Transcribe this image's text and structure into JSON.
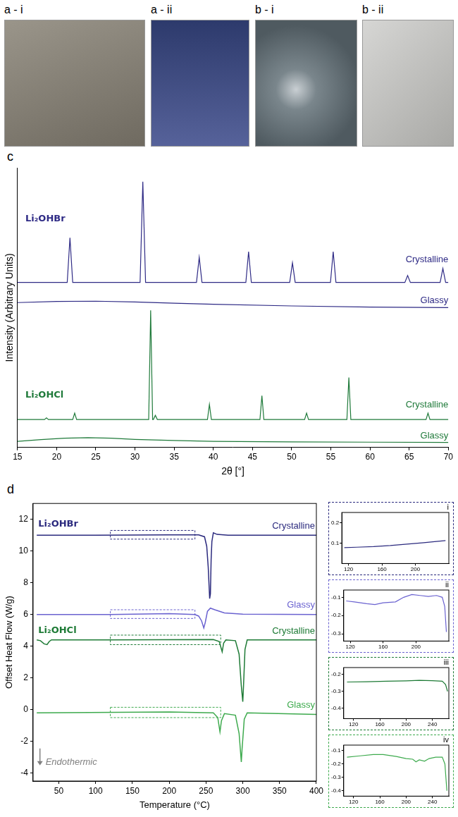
{
  "photos": [
    {
      "label": "a - i"
    },
    {
      "label": "a - ii"
    },
    {
      "label": "b - i"
    },
    {
      "label": "b - ii"
    }
  ],
  "chart_data": [
    {
      "panel": "c",
      "type": "line",
      "x_label": "2θ [°]",
      "y_label": "Intensity (Arbitrary Units)",
      "xlim": [
        15,
        70
      ],
      "xticks": [
        15,
        20,
        25,
        30,
        35,
        40,
        45,
        50,
        55,
        60,
        65,
        70
      ],
      "ylim": [
        0,
        100
      ],
      "tick_labels": "x",
      "grid": false,
      "series": [
        {
          "color": "#2e2a85",
          "x": [
            15,
            21.35,
            21.7,
            22.05,
            30.65,
            31.0,
            31.35,
            37.85,
            38.2,
            38.55,
            44.15,
            44.5,
            44.85,
            49.75,
            50.1,
            50.45,
            54.95,
            55.3,
            55.65,
            64.45,
            64.8,
            65.15,
            68.95,
            69.3,
            69.65,
            70
          ],
          "values": [
            59,
            59,
            75,
            59,
            59,
            95,
            59,
            59,
            68,
            59,
            59,
            70,
            59,
            59,
            66,
            59,
            59,
            70,
            59,
            59,
            61.5,
            59,
            59,
            64,
            59,
            59
          ]
        },
        {
          "color": "#2e2a85",
          "x": [
            15,
            20,
            25,
            30,
            35,
            40,
            50,
            60,
            70
          ],
          "values": [
            51.8,
            52.2,
            52.3,
            52.0,
            51.6,
            51.2,
            50.6,
            50.2,
            50.0
          ]
        },
        {
          "color": "#1f7a3a",
          "x": [
            15,
            18.45,
            18.7,
            18.95,
            22.05,
            22.3,
            22.55,
            31.75,
            32.0,
            32.25,
            32.35,
            32.6,
            32.85,
            39.25,
            39.5,
            39.75,
            45.95,
            46.2,
            46.45,
            51.65,
            51.9,
            52.15,
            57.05,
            57.3,
            57.55,
            67.15,
            67.4,
            67.65,
            70
          ],
          "values": [
            10,
            10,
            10.6,
            10,
            10,
            12.3,
            10,
            10,
            49,
            10,
            10,
            11.5,
            10,
            10,
            15.4,
            10,
            10,
            18.5,
            10,
            10,
            12.3,
            10,
            10,
            25,
            10,
            10,
            12.3,
            10,
            10
          ]
        },
        {
          "color": "#1f7a3a",
          "x": [
            15,
            18,
            21,
            24,
            27,
            30,
            35,
            40,
            50,
            60,
            70
          ],
          "values": [
            2.2,
            2.8,
            3.3,
            3.5,
            3.3,
            2.9,
            2.5,
            2.2,
            2.0,
            1.9,
            1.8
          ]
        }
      ],
      "annotations": [
        {
          "text": "Li₂OHBr",
          "x": 16,
          "y": 80,
          "color": "#2e2a85",
          "weight": "bold",
          "align": "left"
        },
        {
          "text": "Crystalline",
          "x": 70,
          "y": 65.5,
          "color": "#2e2a85",
          "align": "right"
        },
        {
          "text": "Glassy",
          "x": 70,
          "y": 51,
          "color": "#2e2a85",
          "align": "right"
        },
        {
          "text": "Li₂OHCl",
          "x": 16,
          "y": 17,
          "color": "#1f7a3a",
          "weight": "bold",
          "align": "left"
        },
        {
          "text": "Crystalline",
          "x": 70,
          "y": 13.5,
          "color": "#1f7a3a",
          "align": "right"
        },
        {
          "text": "Glassy",
          "x": 70,
          "y": 2.6,
          "color": "#1f7a3a",
          "align": "right"
        }
      ]
    },
    {
      "panel": "d",
      "type": "line",
      "x_label": "Temperature (°C)",
      "y_label": "Offset Heat Flow (W/g)",
      "xlim": [
        15,
        400
      ],
      "xticks": [
        50,
        100,
        150,
        200,
        250,
        300,
        350,
        400
      ],
      "ylim": [
        -4.5,
        13
      ],
      "yticks": [
        -4,
        -2,
        0,
        2,
        4,
        6,
        8,
        10,
        12
      ],
      "grid": false,
      "series": [
        {
          "color": "#2b2a7e",
          "x": [
            20,
            100,
            200,
            240,
            248,
            251,
            253,
            255,
            256,
            257,
            258,
            260,
            265,
            280,
            400
          ],
          "values": [
            11.0,
            11.0,
            11.02,
            11.02,
            10.9,
            10.3,
            9.0,
            7.0,
            7.3,
            9.5,
            10.6,
            11.15,
            11.05,
            11.0,
            11.0
          ]
        },
        {
          "color": "#6a62d0",
          "x": [
            20,
            120,
            200,
            235,
            240,
            244,
            247,
            249,
            252,
            256,
            262,
            275,
            300,
            400
          ],
          "values": [
            6.0,
            6.0,
            6.05,
            6.0,
            5.9,
            5.6,
            5.15,
            5.5,
            6.2,
            6.4,
            6.3,
            6.1,
            6.02,
            6.0
          ]
        },
        {
          "color": "#1d7a35",
          "x": [
            20,
            25,
            30,
            34,
            37,
            40,
            120,
            260,
            268,
            272,
            274,
            277,
            290,
            295,
            298,
            300,
            301,
            303,
            306,
            400
          ],
          "values": [
            4.4,
            4.35,
            4.15,
            4.1,
            4.3,
            4.4,
            4.4,
            4.42,
            4.3,
            3.65,
            4.2,
            4.4,
            4.35,
            3.5,
            1.5,
            0.5,
            1.5,
            3.8,
            4.4,
            4.4
          ]
        },
        {
          "color": "#3daa4d",
          "x": [
            20,
            200,
            260,
            266,
            269,
            271,
            275,
            290,
            295,
            298,
            299,
            302,
            306,
            400
          ],
          "values": [
            -0.2,
            -0.15,
            -0.2,
            -0.5,
            -1.4,
            -0.7,
            -0.25,
            -0.35,
            -1.5,
            -3.3,
            -2.5,
            -0.6,
            -0.2,
            -0.3
          ]
        }
      ],
      "zoom_boxes": [
        {
          "x": [
            120,
            235
          ],
          "y": [
            10.75,
            11.3
          ],
          "color": "#2b2a7e"
        },
        {
          "x": [
            120,
            235
          ],
          "y": [
            5.75,
            6.3
          ],
          "color": "#6a62d0"
        },
        {
          "x": [
            120,
            270
          ],
          "y": [
            4.1,
            4.7
          ],
          "color": "#1d7a35"
        },
        {
          "x": [
            120,
            270
          ],
          "y": [
            -0.5,
            0.15
          ],
          "color": "#3daa4d"
        }
      ],
      "annotations": [
        {
          "text": "Li₂OHBr",
          "x": 22,
          "y": 11.4,
          "color": "#2b2a7e",
          "weight": "bold",
          "align": "left"
        },
        {
          "text": "Crystalline",
          "x": 398,
          "y": 11.3,
          "color": "#2b2a7e",
          "align": "right"
        },
        {
          "text": "Glassy",
          "x": 398,
          "y": 6.3,
          "color": "#6a62d0",
          "align": "right"
        },
        {
          "text": "Li₂OHCl",
          "x": 22,
          "y": 4.7,
          "color": "#1d7a35",
          "weight": "bold",
          "align": "left"
        },
        {
          "text": "Crystalline",
          "x": 398,
          "y": 4.65,
          "color": "#1d7a35",
          "align": "right"
        },
        {
          "text": "Glassy",
          "x": 398,
          "y": 0.0,
          "color": "#3daa4d",
          "align": "right"
        },
        {
          "text": "Endothermic",
          "x": 32,
          "y": -3.6,
          "color": "#808080",
          "style": "italic",
          "align": "left",
          "arrow": "down"
        }
      ]
    },
    {
      "panel": "i",
      "type": "line",
      "xlim": [
        112,
        240
      ],
      "xticks": [
        120,
        160,
        200
      ],
      "ylim": [
        0,
        0.25
      ],
      "yticks": [
        0.1,
        0.2
      ],
      "grid": false,
      "series": [
        {
          "color": "#2b2a7e",
          "x": [
            115,
            130,
            150,
            170,
            190,
            210,
            225,
            236
          ],
          "values": [
            0.078,
            0.08,
            0.083,
            0.088,
            0.095,
            0.102,
            0.108,
            0.112
          ]
        }
      ]
    },
    {
      "panel": "ii",
      "type": "line",
      "xlim": [
        112,
        240
      ],
      "xticks": [
        120,
        160,
        200
      ],
      "ylim": [
        -0.34,
        -0.06
      ],
      "yticks": [
        -0.3,
        -0.2,
        -0.1
      ],
      "grid": false,
      "series": [
        {
          "color": "#6a62d0",
          "x": [
            115,
            125,
            140,
            150,
            160,
            175,
            185,
            195,
            205,
            215,
            225,
            232,
            235,
            237
          ],
          "values": [
            -0.12,
            -0.125,
            -0.135,
            -0.14,
            -0.13,
            -0.125,
            -0.1,
            -0.085,
            -0.09,
            -0.095,
            -0.09,
            -0.1,
            -0.15,
            -0.29
          ]
        }
      ]
    },
    {
      "panel": "iii",
      "type": "line",
      "xlim": [
        105,
        265
      ],
      "xticks": [
        120,
        160,
        200,
        240
      ],
      "ylim": [
        -0.46,
        -0.16
      ],
      "yticks": [
        -0.4,
        -0.3,
        -0.2
      ],
      "grid": false,
      "series": [
        {
          "color": "#1d7a35",
          "x": [
            110,
            140,
            170,
            200,
            220,
            240,
            255,
            260,
            263
          ],
          "values": [
            -0.245,
            -0.243,
            -0.24,
            -0.238,
            -0.235,
            -0.237,
            -0.24,
            -0.26,
            -0.3
          ]
        }
      ]
    },
    {
      "panel": "iv",
      "type": "line",
      "xlim": [
        105,
        265
      ],
      "xticks": [
        120,
        160,
        200,
        240
      ],
      "ylim": [
        -0.44,
        -0.06
      ],
      "yticks": [
        -0.4,
        -0.3,
        -0.2,
        -0.1
      ],
      "grid": false,
      "series": [
        {
          "color": "#3daa4d",
          "x": [
            110,
            130,
            150,
            165,
            185,
            200,
            210,
            215,
            220,
            228,
            235,
            245,
            255,
            259,
            262
          ],
          "values": [
            -0.15,
            -0.14,
            -0.13,
            -0.13,
            -0.145,
            -0.16,
            -0.165,
            -0.185,
            -0.17,
            -0.18,
            -0.16,
            -0.15,
            -0.15,
            -0.2,
            -0.4
          ]
        }
      ]
    }
  ]
}
